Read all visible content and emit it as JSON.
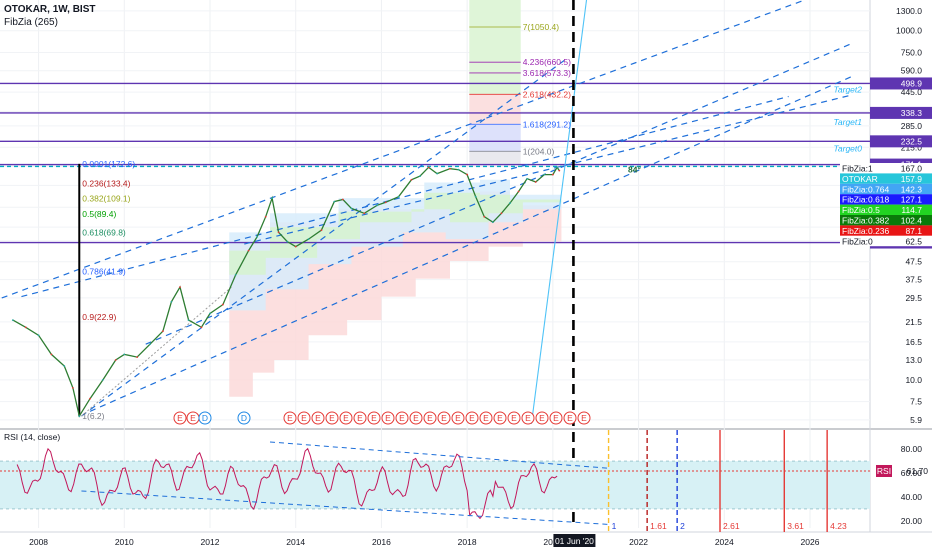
{
  "header": {
    "title": "OTOKAR, 1W, BIST",
    "indicator": "FibZia (265)"
  },
  "chart_data": [
    {
      "type": "line",
      "title": "OTOKAR, 1W, BIST",
      "y_scale": "log",
      "ylim": [
        5.3,
        1500
      ],
      "xlim": [
        2007.1,
        2027.4
      ],
      "y_ticks": [
        "1300.0",
        "1000.0",
        "750.0",
        "590.0",
        "445.0",
        "345.0",
        "285.0",
        "215.0",
        "167.0",
        "130.0",
        "97.5",
        "75.0",
        "62.5",
        "47.5",
        "37.5",
        "29.5",
        "21.5",
        "16.5",
        "13.0",
        "10.0",
        "7.5",
        "5.9"
      ],
      "x_ticks": [
        "2008",
        "2010",
        "2012",
        "2014",
        "2016",
        "2018",
        "2020",
        "2022",
        "2024",
        "2026"
      ],
      "date_marker": "01 Jun '20",
      "price_points": [
        [
          2007.4,
          22
        ],
        [
          2007.7,
          20
        ],
        [
          2008.0,
          18
        ],
        [
          2008.3,
          14
        ],
        [
          2008.6,
          12
        ],
        [
          2008.8,
          9
        ],
        [
          2008.95,
          6.2
        ],
        [
          2009.2,
          7.8
        ],
        [
          2009.5,
          10
        ],
        [
          2009.8,
          13
        ],
        [
          2010.0,
          14
        ],
        [
          2010.3,
          13.5
        ],
        [
          2010.6,
          16
        ],
        [
          2010.9,
          19
        ],
        [
          2011.1,
          28
        ],
        [
          2011.3,
          34
        ],
        [
          2011.5,
          22
        ],
        [
          2011.8,
          20
        ],
        [
          2012.0,
          24
        ],
        [
          2012.3,
          27
        ],
        [
          2012.6,
          40
        ],
        [
          2012.9,
          55
        ],
        [
          2013.1,
          66
        ],
        [
          2013.3,
          86
        ],
        [
          2013.45,
          110
        ],
        [
          2013.6,
          70
        ],
        [
          2013.8,
          62
        ],
        [
          2014.0,
          58
        ],
        [
          2014.3,
          64
        ],
        [
          2014.6,
          72
        ],
        [
          2014.9,
          105
        ],
        [
          2015.1,
          108
        ],
        [
          2015.3,
          96
        ],
        [
          2015.6,
          90
        ],
        [
          2015.9,
          100
        ],
        [
          2016.1,
          104
        ],
        [
          2016.4,
          112
        ],
        [
          2016.7,
          140
        ],
        [
          2016.9,
          147
        ],
        [
          2017.1,
          165
        ],
        [
          2017.3,
          152
        ],
        [
          2017.6,
          162
        ],
        [
          2017.8,
          160
        ],
        [
          2018.0,
          150
        ],
        [
          2018.2,
          112
        ],
        [
          2018.4,
          86
        ],
        [
          2018.6,
          80
        ],
        [
          2018.8,
          90
        ],
        [
          2019.0,
          103
        ],
        [
          2019.2,
          120
        ],
        [
          2019.4,
          142
        ],
        [
          2019.6,
          136
        ],
        [
          2019.8,
          150
        ],
        [
          2020.0,
          150
        ],
        [
          2020.1,
          165
        ],
        [
          2020.15,
          158
        ]
      ],
      "fib_levels_left": [
        {
          "label": "0.0001(172.6)",
          "price": 172.6,
          "color": "#2962ff"
        },
        {
          "label": "0.236(133.4)",
          "price": 133.4,
          "color": "#b71c1c"
        },
        {
          "label": "0.382(109.1)",
          "price": 109.1,
          "color": "#9aa61c"
        },
        {
          "label": "0.5(89.4)",
          "price": 89.4,
          "color": "#00a000"
        },
        {
          "label": "0.618(69.8)",
          "price": 69.8,
          "color": "#1e8f63"
        },
        {
          "label": "0.786(41.9)",
          "price": 41.9,
          "color": "#2962ff"
        },
        {
          "label": "0.9(22.9)",
          "price": 22.9,
          "color": "#b71c1c"
        },
        {
          "label": "1(6.2)",
          "price": 6.2,
          "color": "#787b86"
        }
      ],
      "fib_levels_ext": [
        {
          "label": "7(1050.4)",
          "price": 1050.4,
          "color": "#9aa61c"
        },
        {
          "label": "4.236(660.5)",
          "price": 660.5,
          "color": "#9c27b0"
        },
        {
          "label": "3.618(573.3)",
          "price": 573.3,
          "color": "#9c27b0"
        },
        {
          "label": "2.618(432.2)",
          "price": 432.2,
          "color": "#e53935"
        },
        {
          "label": "1.618(291.2)",
          "price": 291.2,
          "color": "#2962ff"
        },
        {
          "label": "1(204.0)",
          "price": 204.0,
          "color": "#787b86"
        }
      ],
      "purple_lines": [
        {
          "price": 498.9,
          "tag": "498.9"
        },
        {
          "price": 338.3,
          "tag": "338.3"
        },
        {
          "price": 232.5,
          "tag": "232.5"
        },
        {
          "price": 171.1,
          "tag": "171.1"
        },
        {
          "price": 61.2,
          "tag": "61.2"
        }
      ],
      "targets": [
        {
          "label": "Target2",
          "price": 460
        },
        {
          "label": "Target1",
          "price": 300
        },
        {
          "label": "Target0",
          "price": 212
        }
      ],
      "angle_label": "84°",
      "price_tags": [
        {
          "label": "FibZia:1",
          "value": "167.0",
          "bg": "#ffffff",
          "fg": "#131722"
        },
        {
          "label": "OTOKAR",
          "value": "157.9",
          "bg": "#26c6da",
          "fg": "#ffffff"
        },
        {
          "label": "FibZia:0.764",
          "value": "142.3",
          "bg": "#42a5f5",
          "fg": "#ffffff"
        },
        {
          "label": "FibZia:0.618",
          "value": "127.1",
          "bg": "#1a1aff",
          "fg": "#ffffff"
        },
        {
          "label": "FibZia:0.5",
          "value": "114.7",
          "bg": "#22d422",
          "fg": "#ffffff"
        },
        {
          "label": "FibZia:0.382",
          "value": "102.4",
          "bg": "#0a7a0a",
          "fg": "#ffffff"
        },
        {
          "label": "FibZia:0.236",
          "value": "87.1",
          "bg": "#e81515",
          "fg": "#ffffff"
        },
        {
          "label": "FibZia:0",
          "value": "62.5",
          "bg": "#ffffff",
          "fg": "#131722"
        }
      ],
      "event_badges": [
        "E",
        "E",
        "D",
        "D",
        "E",
        "E",
        "E",
        "E",
        "E",
        "E",
        "E",
        "E",
        "E",
        "E",
        "E",
        "E",
        "E",
        "E",
        "E",
        "E",
        "E",
        "E",
        "E",
        "E",
        "E",
        "E"
      ]
    },
    {
      "type": "line",
      "title": "RSI (14, close)",
      "ylim": [
        14,
        96
      ],
      "y_ticks": [
        "80.00",
        "60.00",
        "40.00",
        "20.00"
      ],
      "last_label": "RSI",
      "last_value": "61.70",
      "band": [
        30,
        70
      ],
      "time_marks": [
        "1",
        "1.61",
        "2",
        "2.61",
        "3.61",
        "4.23"
      ]
    }
  ]
}
